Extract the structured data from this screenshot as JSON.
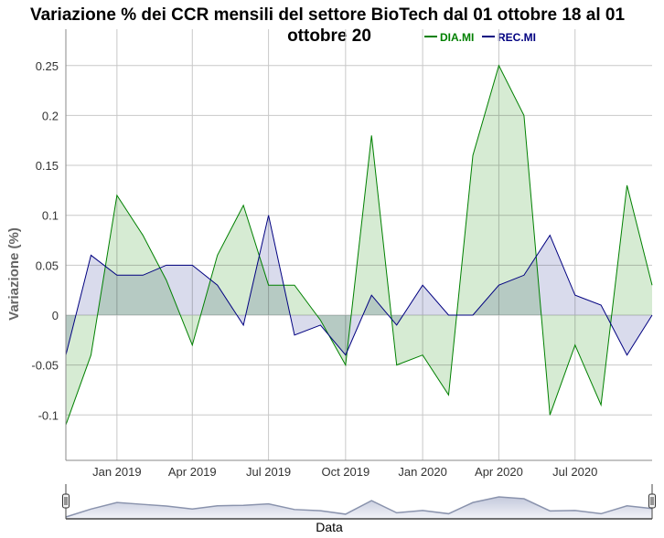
{
  "chart_data": {
    "type": "area",
    "title": "Variazione % dei CCR mensili del settore BioTech dal 01 ottobre 18 al 01 ottobre 20",
    "xlabel": "Data",
    "ylabel": "Variazione (%)",
    "ylim": [
      -0.145,
      0.29
    ],
    "yticks": [
      -0.1,
      -0.05,
      0,
      0.05,
      0.1,
      0.15,
      0.2,
      0.25
    ],
    "ytick_labels": [
      "-0.1",
      "-0.05",
      "0",
      "0.05",
      "0.1",
      "0.15",
      "0.2",
      "0.25"
    ],
    "xticks": [
      {
        "x": "2019-01-01",
        "label": "Jan 2019"
      },
      {
        "x": "2019-04-01",
        "label": "Apr 2019"
      },
      {
        "x": "2019-07-01",
        "label": "Jul 2019"
      },
      {
        "x": "2019-10-01",
        "label": "Oct 2019"
      },
      {
        "x": "2020-01-01",
        "label": "Jan 2020"
      },
      {
        "x": "2020-04-01",
        "label": "Apr 2020"
      },
      {
        "x": "2020-07-01",
        "label": "Jul 2020"
      }
    ],
    "x": [
      "2018-11-01",
      "2018-12-01",
      "2019-01-01",
      "2019-02-01",
      "2019-03-01",
      "2019-04-01",
      "2019-05-01",
      "2019-06-01",
      "2019-07-01",
      "2019-08-01",
      "2019-09-01",
      "2019-10-01",
      "2019-11-01",
      "2019-12-01",
      "2020-01-01",
      "2020-02-01",
      "2020-03-01",
      "2020-04-01",
      "2020-05-01",
      "2020-06-01",
      "2020-07-01",
      "2020-08-01",
      "2020-09-01",
      "2020-10-01"
    ],
    "series": [
      {
        "name": "DIA.MI",
        "color": "#008000",
        "fill": "#d6ebd3",
        "values": [
          -0.11,
          -0.04,
          0.12,
          0.08,
          0.035,
          -0.03,
          0.06,
          0.11,
          0.03,
          0.03,
          -0.005,
          -0.05,
          0.18,
          -0.05,
          -0.04,
          -0.08,
          0.16,
          0.25,
          0.2,
          -0.1,
          -0.03,
          -0.09,
          0.13,
          0.03
        ]
      },
      {
        "name": "REC.MI",
        "color": "#000080",
        "fill": "#d5d7ea",
        "values": [
          -0.04,
          0.06,
          0.04,
          0.04,
          0.05,
          0.05,
          0.03,
          -0.01,
          0.1,
          -0.02,
          -0.01,
          -0.04,
          0.02,
          -0.01,
          0.03,
          0.0,
          0.0,
          0.03,
          0.04,
          0.08,
          0.02,
          0.01,
          -0.04,
          0.0
        ]
      }
    ],
    "grid": true,
    "legend": "top-right"
  },
  "navigator": {
    "label": "Data",
    "left_handle": "slider-handle",
    "right_handle": "slider-handle"
  }
}
